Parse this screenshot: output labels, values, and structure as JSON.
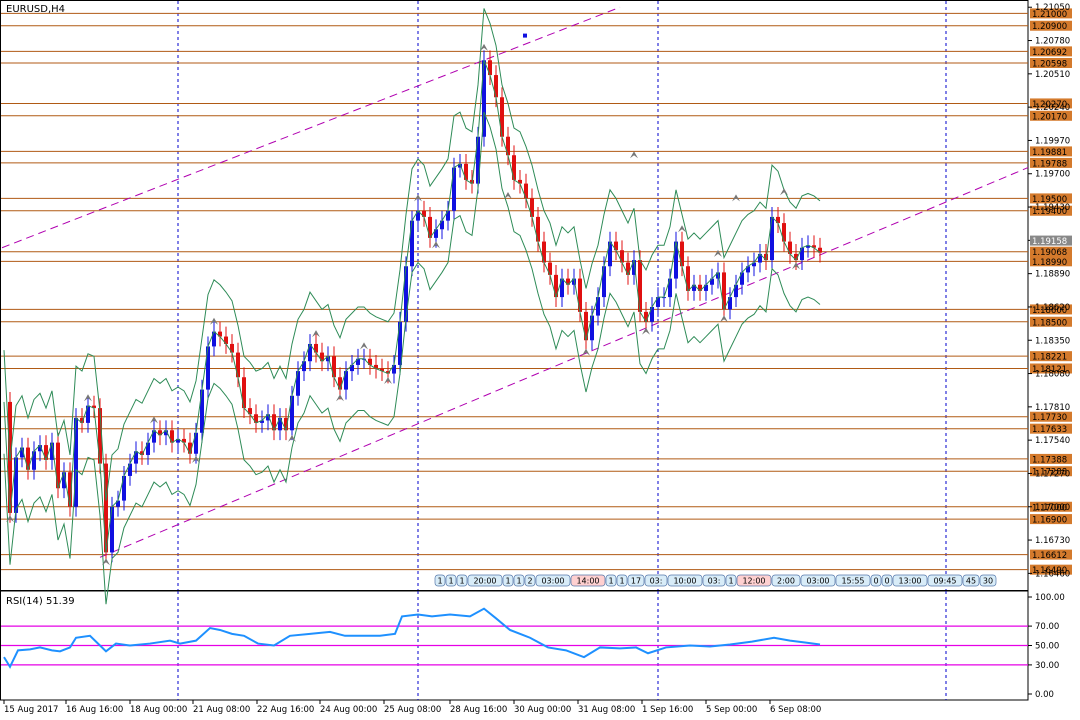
{
  "symbol_label": "EURUSD,H4",
  "rsi_label": "RSI(14) 51.39",
  "colors": {
    "bull": "#1010e0",
    "bear": "#e01010",
    "level_line": "#b05a14",
    "level_label_bg": "#d47a2c",
    "grid_vline": "#0000cc",
    "bollinger": "#2e8b57",
    "trendline": "#b000b0",
    "rsi_line": "#1e90ff",
    "rsi_level": "#e600e6",
    "current_price_bg": "#888888"
  },
  "price_axis": {
    "ticks": [
      "1.21050",
      "1.20780",
      "1.20510",
      "1.20240",
      "1.19970",
      "1.19700",
      "1.19430",
      "1.19160",
      "1.18890",
      "1.18620",
      "1.18350",
      "1.18080",
      "1.17810",
      "1.17540",
      "1.17270",
      "1.17000",
      "1.16730",
      "1.16460"
    ],
    "range": [
      1.1642,
      1.2106
    ]
  },
  "levels": [
    "1.21000",
    "1.20900",
    "1.20692",
    "1.20598",
    "1.20270",
    "1.20170",
    "1.19881",
    "1.19788",
    "1.19500",
    "1.19400",
    "1.19068",
    "1.18990",
    "1.18600",
    "1.18500",
    "1.18221",
    "1.18121",
    "1.17730",
    "1.17633",
    "1.17388",
    "1.17288",
    "1.17000",
    "1.16900",
    "1.16612",
    "1.16490"
  ],
  "current_price": "1.19158",
  "time_axis": [
    "15 Aug 2017",
    "16 Aug 16:00",
    "18 Aug 00:00",
    "21 Aug 08:00",
    "22 Aug 16:00",
    "24 Aug 00:00",
    "25 Aug 08:00",
    "28 Aug 16:00",
    "30 Aug 00:00",
    "31 Aug 08:00",
    "1 Sep 16:00",
    "5 Sep 00:00",
    "6 Sep 08:00"
  ],
  "event_markers": [
    "1",
    "1",
    "1",
    "20:00",
    "1",
    "1",
    "2",
    "03:00",
    "14:00",
    "1",
    "1",
    "17",
    "03:",
    "10:00",
    "03:",
    "1",
    "12:00",
    "2:00",
    "03:00",
    "15:55",
    "0",
    "0",
    "13:00",
    "09:45",
    "45",
    "30"
  ],
  "rsi_axis": [
    "100.00",
    "70.00",
    "50.00",
    "30.00",
    "0.00"
  ],
  "rsi_levels": [
    70,
    50,
    30
  ]
}
